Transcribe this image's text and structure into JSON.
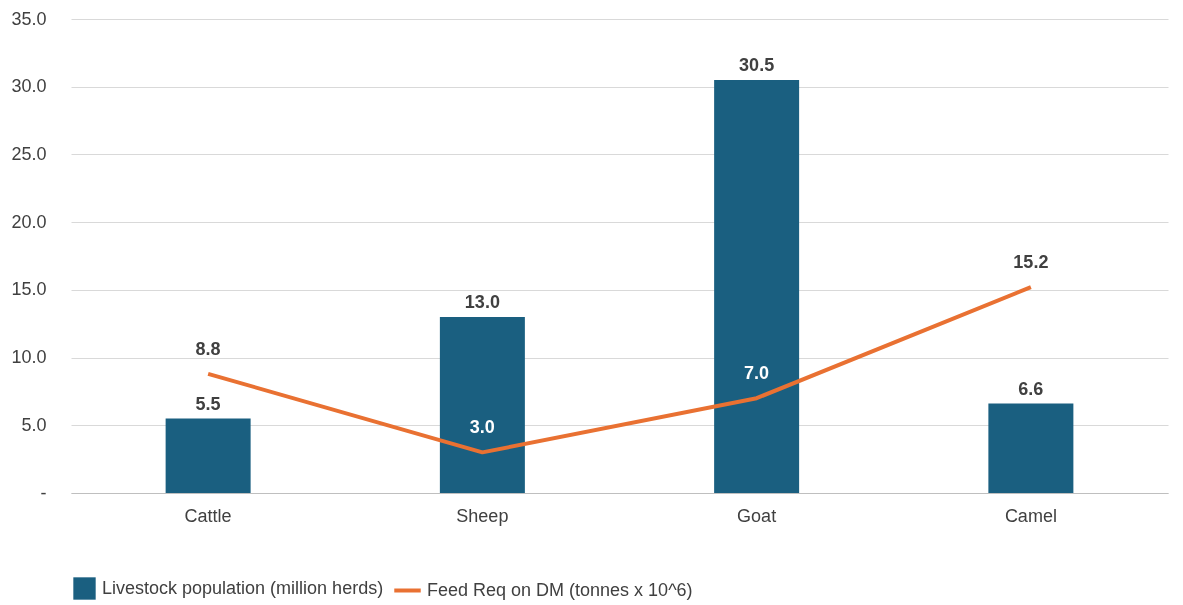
{
  "chart_data": {
    "type": "bar",
    "categories": [
      "Cattle",
      "Sheep",
      "Goat",
      "Camel"
    ],
    "series": [
      {
        "name": "Livestock population (million herds)",
        "color": "#1a5f80",
        "values": [
          5.5,
          13.0,
          30.5,
          6.6
        ],
        "value_labels": [
          "5.5",
          "13.0",
          "30.5",
          "6.6"
        ]
      },
      {
        "name": "Feed Req on DM (tonnes x 10^6)",
        "type": "line",
        "color": "#e97132",
        "values": [
          8.8,
          3.0,
          7.0,
          15.2
        ],
        "value_labels": [
          "8.8",
          "3.0",
          "7.0",
          "15.2"
        ]
      }
    ],
    "ylim": [
      0,
      35
    ],
    "yticks": [
      {
        "value": 0,
        "label": "-"
      },
      {
        "value": 5,
        "label": "5.0"
      },
      {
        "value": 10,
        "label": "10.0"
      },
      {
        "value": 15,
        "label": "15.0"
      },
      {
        "value": 20,
        "label": "20.0"
      },
      {
        "value": 25,
        "label": "25.0"
      },
      {
        "value": 30,
        "label": "30.0"
      },
      {
        "value": 35,
        "label": "35.0"
      }
    ],
    "grid": "y",
    "legend": "bottom",
    "marker": "none",
    "line_style": "solid"
  }
}
